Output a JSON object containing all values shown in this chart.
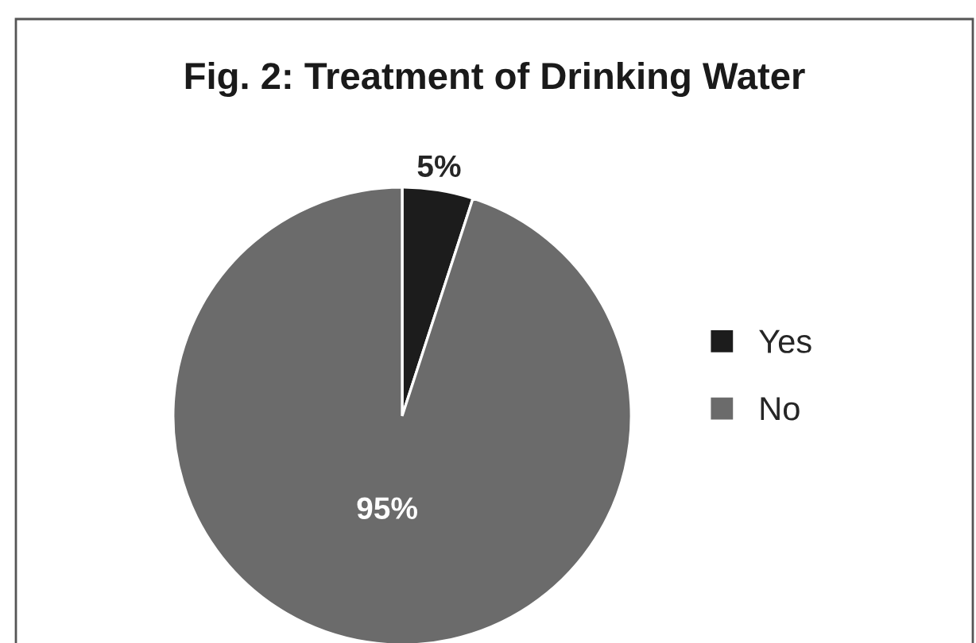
{
  "chart_data": {
    "type": "pie",
    "title": "Fig. 2: Treatment of Drinking Water",
    "categories": [
      "Yes",
      "No"
    ],
    "values": [
      5,
      95
    ],
    "colors": [
      "#1c1c1c",
      "#6b6b6b"
    ],
    "value_labels": [
      "5%",
      "95%"
    ],
    "legend": "right"
  }
}
